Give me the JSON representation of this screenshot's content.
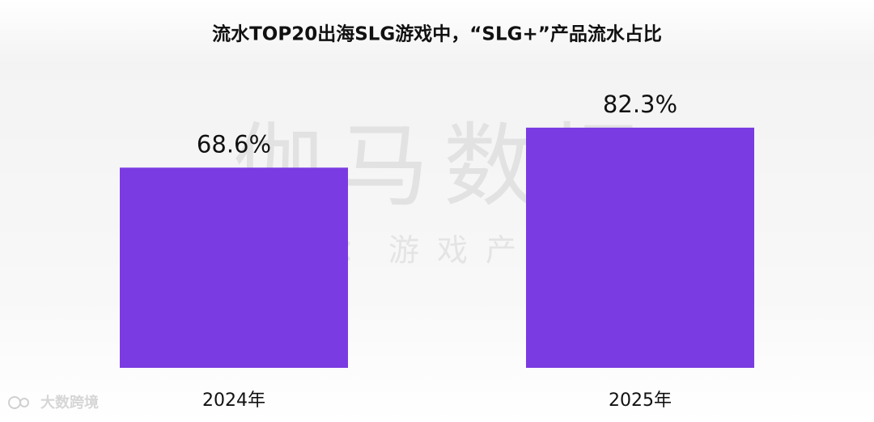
{
  "chart_data": {
    "type": "bar",
    "title": "流水TOP20出海SLG游戏中，“SLG+”产品流水占比",
    "categories": [
      "2024年",
      "2025年"
    ],
    "values": [
      68.6,
      82.3
    ],
    "value_labels": [
      "68.6%",
      "82.3%"
    ],
    "color": "#7a3be2"
  },
  "watermark": {
    "main": "伽马数据",
    "sub": "微信号：游戏产业报告",
    "logo": "大数跨境"
  }
}
